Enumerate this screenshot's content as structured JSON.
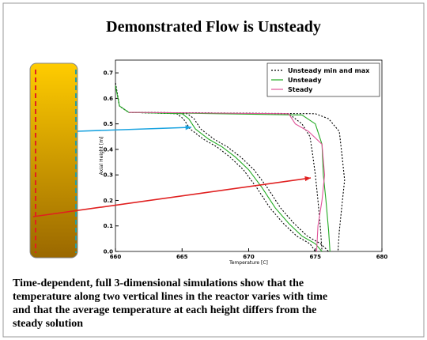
{
  "title": "Demonstrated Flow is Unsteady",
  "caption": [
    "Time-dependent, full 3-dimensional simulations show that the",
    "temperature along two vertical lines in the reactor varies with time",
    "and that the average temperature at each height differs from the",
    "steady solution"
  ],
  "chart_data": {
    "type": "line",
    "xlabel": "Temperature [C]",
    "ylabel": "Axial Height [m]",
    "xlim": [
      660,
      680
    ],
    "xticks": [
      660,
      665,
      670,
      675,
      680
    ],
    "ylim": [
      0,
      0.75
    ],
    "yticks": [
      {
        "value": 0,
        "label": "0.0"
      },
      0.1,
      0.2,
      0.3,
      0.4,
      0.5,
      0.6,
      0.7
    ],
    "legend": "upper right",
    "series": [
      {
        "name": "Unsteady min and max",
        "color": "#000000",
        "dash": true,
        "lines": [
          {
            "x": [
              660,
              660.3,
              661,
              664.6,
              665.1,
              665.6,
              666.6,
              667.6,
              668.6,
              669.6,
              670.6,
              671.6,
              672.6,
              673.6,
              674.6,
              675
            ],
            "y": [
              0.66,
              0.57,
              0.545,
              0.54,
              0.52,
              0.48,
              0.44,
              0.41,
              0.37,
              0.32,
              0.25,
              0.17,
              0.11,
              0.06,
              0.03,
              0
            ]
          },
          {
            "x": [
              660,
              660.3,
              661,
              665.4,
              665.9,
              666.4,
              667.4,
              668.4,
              669.4,
              670.4,
              671.4,
              672.4,
              673.4,
              674.4,
              675.4,
              676
            ],
            "y": [
              0.66,
              0.57,
              0.545,
              0.54,
              0.52,
              0.48,
              0.44,
              0.41,
              0.37,
              0.32,
              0.25,
              0.17,
              0.11,
              0.06,
              0.03,
              0
            ]
          },
          {
            "x": [
              661,
              673,
              674,
              674.6,
              674.8,
              675,
              675.2,
              675.4,
              675.5
            ],
            "y": [
              0.545,
              0.54,
              0.5,
              0.45,
              0.38,
              0.3,
              0.2,
              0.08,
              0
            ]
          },
          {
            "x": [
              661,
              675,
              676,
              676.8,
              677,
              677.2,
              677,
              676.8,
              676.7
            ],
            "y": [
              0.545,
              0.54,
              0.52,
              0.47,
              0.38,
              0.28,
              0.18,
              0.08,
              0
            ]
          }
        ]
      },
      {
        "name": "Unsteady",
        "color": "#22aa22",
        "dash": false,
        "lines": [
          {
            "x": [
              660,
              660.3,
              661,
              665,
              665.5,
              666,
              667,
              668,
              669,
              670,
              671,
              672,
              673,
              674,
              675,
              675.5
            ],
            "y": [
              0.65,
              0.57,
              0.545,
              0.54,
              0.52,
              0.48,
              0.44,
              0.41,
              0.37,
              0.32,
              0.25,
              0.17,
              0.11,
              0.06,
              0.03,
              0
            ]
          },
          {
            "x": [
              661,
              674,
              675,
              675.5,
              675.6,
              675.8,
              676,
              676.1
            ],
            "y": [
              0.545,
              0.535,
              0.5,
              0.42,
              0.3,
              0.2,
              0.08,
              0
            ]
          }
        ]
      },
      {
        "name": "Steady",
        "color": "#e0559a",
        "dash": false,
        "lines": [
          {
            "x": [
              661,
              673,
              673.5,
              674.5,
              675.5,
              675.7,
              675.5,
              675.2,
              675.1
            ],
            "y": [
              0.545,
              0.54,
              0.5,
              0.47,
              0.42,
              0.3,
              0.2,
              0.1,
              0
            ]
          }
        ]
      }
    ]
  }
}
